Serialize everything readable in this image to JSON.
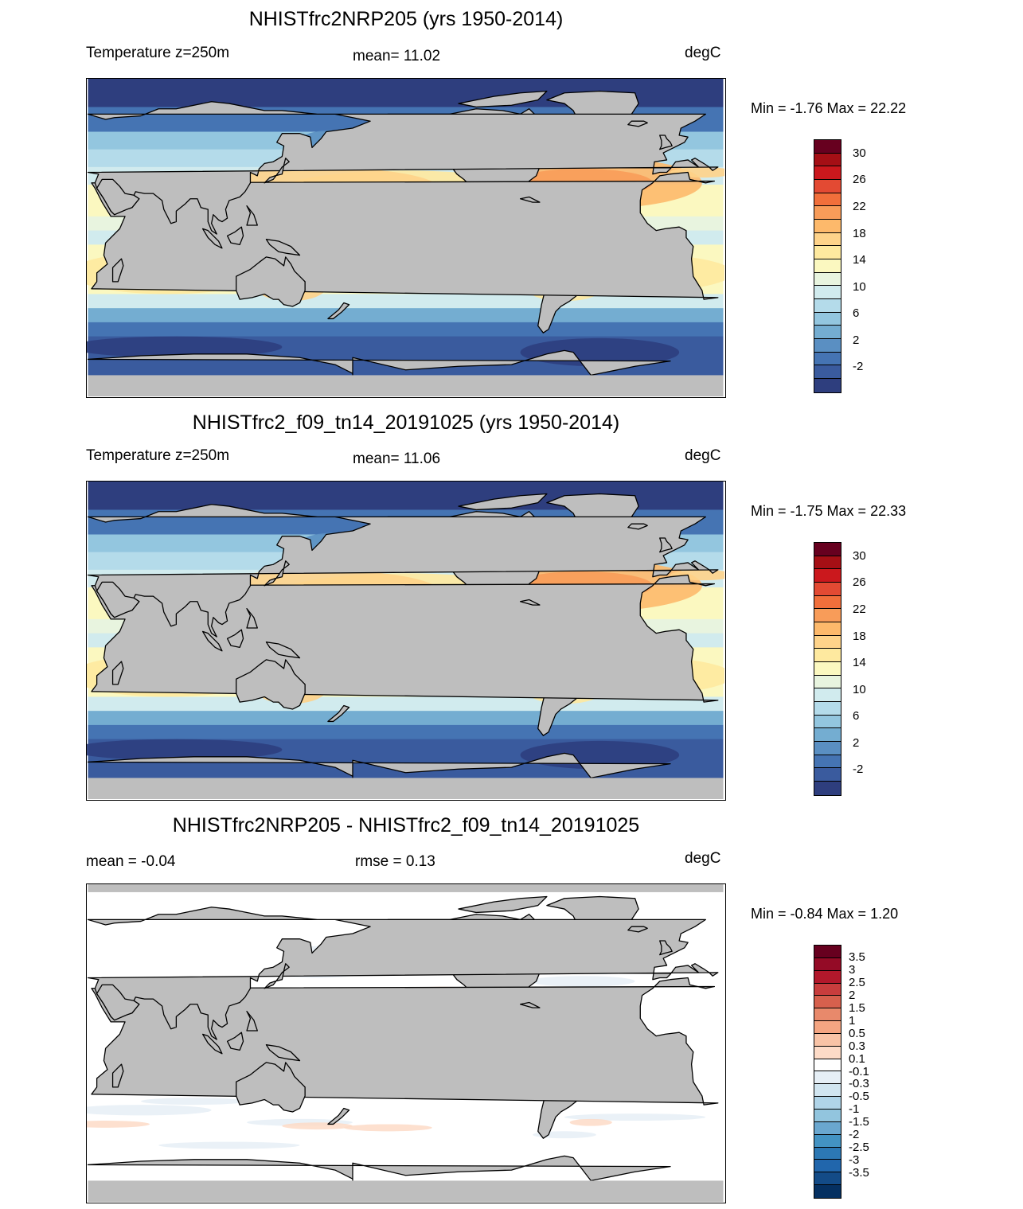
{
  "panels": [
    {
      "title": "NHISTfrc2NRP205 (yrs 1950-2014)",
      "left_label": "Temperature z=250m",
      "center_label": "mean=  11.02",
      "units": "degC",
      "minmax": "Min =  -1.76 Max =  22.22",
      "kind": "temp"
    },
    {
      "title": "NHISTfrc2_f09_tn14_20191025 (yrs 1950-2014)",
      "left_label": "Temperature z=250m",
      "center_label": "mean=  11.06",
      "units": "degC",
      "minmax": "Min =  -1.75 Max =  22.33",
      "kind": "temp"
    },
    {
      "title": "NHISTfrc2NRP205 - NHISTfrc2_f09_tn14_20191025",
      "left_label": "mean =  -0.04",
      "center_label": "rmse =   0.13",
      "units": "degC",
      "minmax": "Min =  -0.84 Max =   1.20",
      "kind": "diff"
    }
  ],
  "temp_colorbar": {
    "labels": [
      "30",
      "26",
      "22",
      "18",
      "14",
      "10",
      "6",
      "2",
      "-2"
    ],
    "colors_top_to_bottom": [
      "#67001f",
      "#a50f15",
      "#cb181d",
      "#e34a33",
      "#f16f3b",
      "#f89c59",
      "#fdb96b",
      "#fed38a",
      "#fee99f",
      "#fbf8c0",
      "#e8f4df",
      "#d1ebee",
      "#b4dbea",
      "#93c6df",
      "#74add1",
      "#5a8fc2",
      "#4574b3",
      "#3a5b9e",
      "#2e3e7e"
    ]
  },
  "diff_colorbar": {
    "labels": [
      "3.5",
      "3",
      "2.5",
      "2",
      "1.5",
      "1",
      "0.5",
      "0.3",
      "0.1",
      "-0.1",
      "-0.3",
      "-0.5",
      "-1",
      "-1.5",
      "-2",
      "-2.5",
      "-3",
      "-3.5"
    ],
    "colors_top_to_bottom": [
      "#67001f",
      "#940b26",
      "#b2182b",
      "#c83d3d",
      "#d6604d",
      "#e8896b",
      "#f4a582",
      "#f8c3a6",
      "#fddbc7",
      "#ffffff",
      "#e6eff6",
      "#d1e5f0",
      "#b0d4e8",
      "#92c5de",
      "#6aa7cf",
      "#4393c3",
      "#2c78b4",
      "#2166ac",
      "#134b87",
      "#053061"
    ]
  },
  "map_colors": {
    "land": "#bebebe",
    "coast": "#000000"
  }
}
